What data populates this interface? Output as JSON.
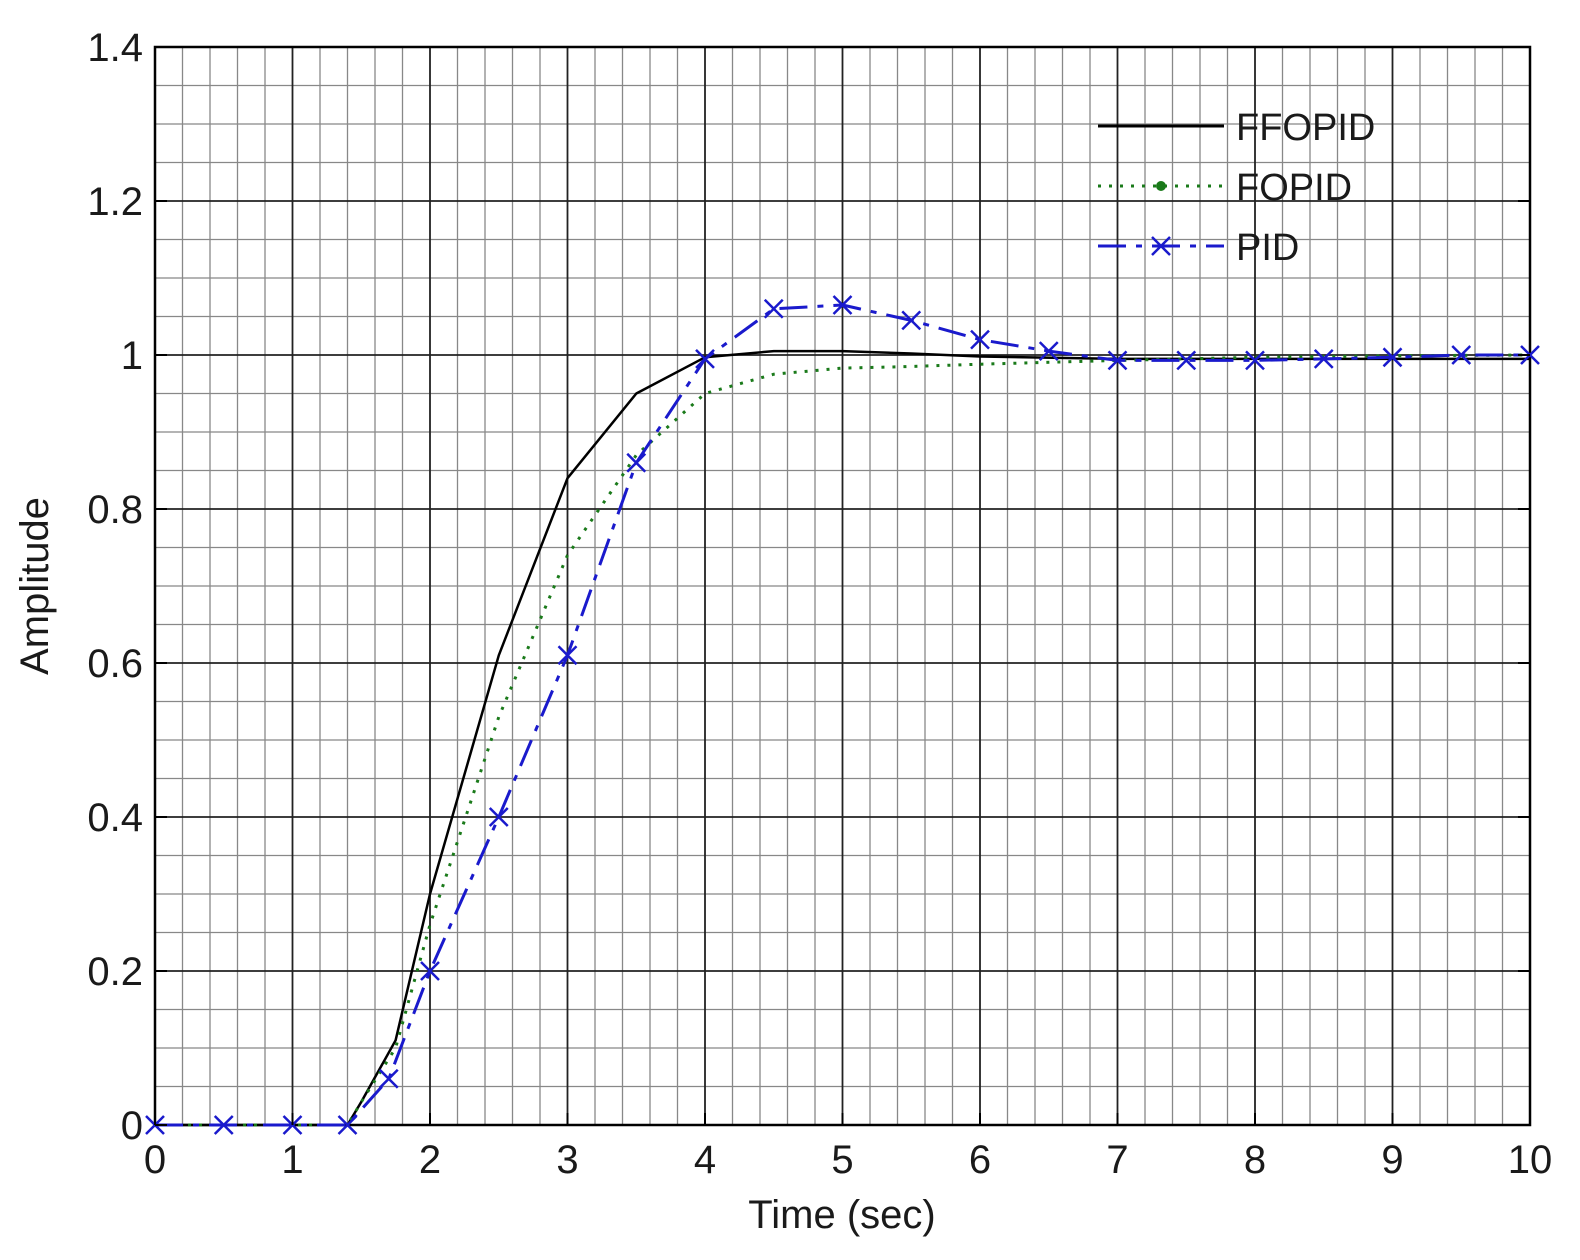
{
  "chart_data": {
    "type": "line",
    "title": "",
    "xlabel": "Time (sec)",
    "ylabel": "Amplitude",
    "xlim": [
      0,
      10
    ],
    "ylim": [
      0,
      1.4
    ],
    "xticks": [
      0,
      1,
      2,
      3,
      4,
      5,
      6,
      7,
      8,
      9,
      10
    ],
    "yticks": [
      0,
      0.2,
      0.4,
      0.6,
      0.8,
      1,
      1.2,
      1.4
    ],
    "grid": true,
    "legend_position": "top-right",
    "series": [
      {
        "name": "FFOPID",
        "color": "#000000",
        "style": "solid",
        "marker": "none",
        "x": [
          0,
          1.4,
          1.5,
          1.75,
          2.0,
          2.5,
          3.0,
          3.5,
          4.0,
          4.5,
          5.0,
          5.5,
          6.0,
          7.0,
          8.0,
          9.0,
          10.0
        ],
        "y": [
          0,
          0,
          0.03,
          0.11,
          0.3,
          0.61,
          0.84,
          0.95,
          0.997,
          1.005,
          1.005,
          1.002,
          0.998,
          0.995,
          0.995,
          0.995,
          0.995
        ]
      },
      {
        "name": "FOPID",
        "color": "#1a7a1a",
        "style": "dotted",
        "marker": "dot",
        "x": [
          0,
          1.4,
          1.5,
          1.75,
          2.0,
          2.5,
          3.0,
          3.5,
          4.0,
          4.5,
          5.0,
          5.5,
          6.0,
          7.0,
          8.0,
          9.0,
          10.0
        ],
        "y": [
          0,
          0,
          0.03,
          0.1,
          0.26,
          0.53,
          0.74,
          0.87,
          0.95,
          0.975,
          0.983,
          0.985,
          0.988,
          0.993,
          0.997,
          0.999,
          1.0
        ]
      },
      {
        "name": "PID",
        "color": "#1a1acc",
        "style": "dashdot",
        "marker": "x",
        "x": [
          0,
          0.5,
          1.0,
          1.4,
          1.7,
          2.0,
          2.5,
          3.0,
          3.5,
          4.0,
          4.5,
          5.0,
          5.5,
          6.0,
          6.5,
          7.0,
          7.5,
          8.0,
          8.5,
          9.0,
          9.5,
          10.0
        ],
        "y": [
          0,
          0,
          0,
          0,
          0.06,
          0.2,
          0.4,
          0.61,
          0.86,
          0.995,
          1.06,
          1.065,
          1.045,
          1.02,
          1.005,
          0.993,
          0.993,
          0.993,
          0.995,
          0.997,
          1.0,
          1.0
        ]
      }
    ]
  }
}
